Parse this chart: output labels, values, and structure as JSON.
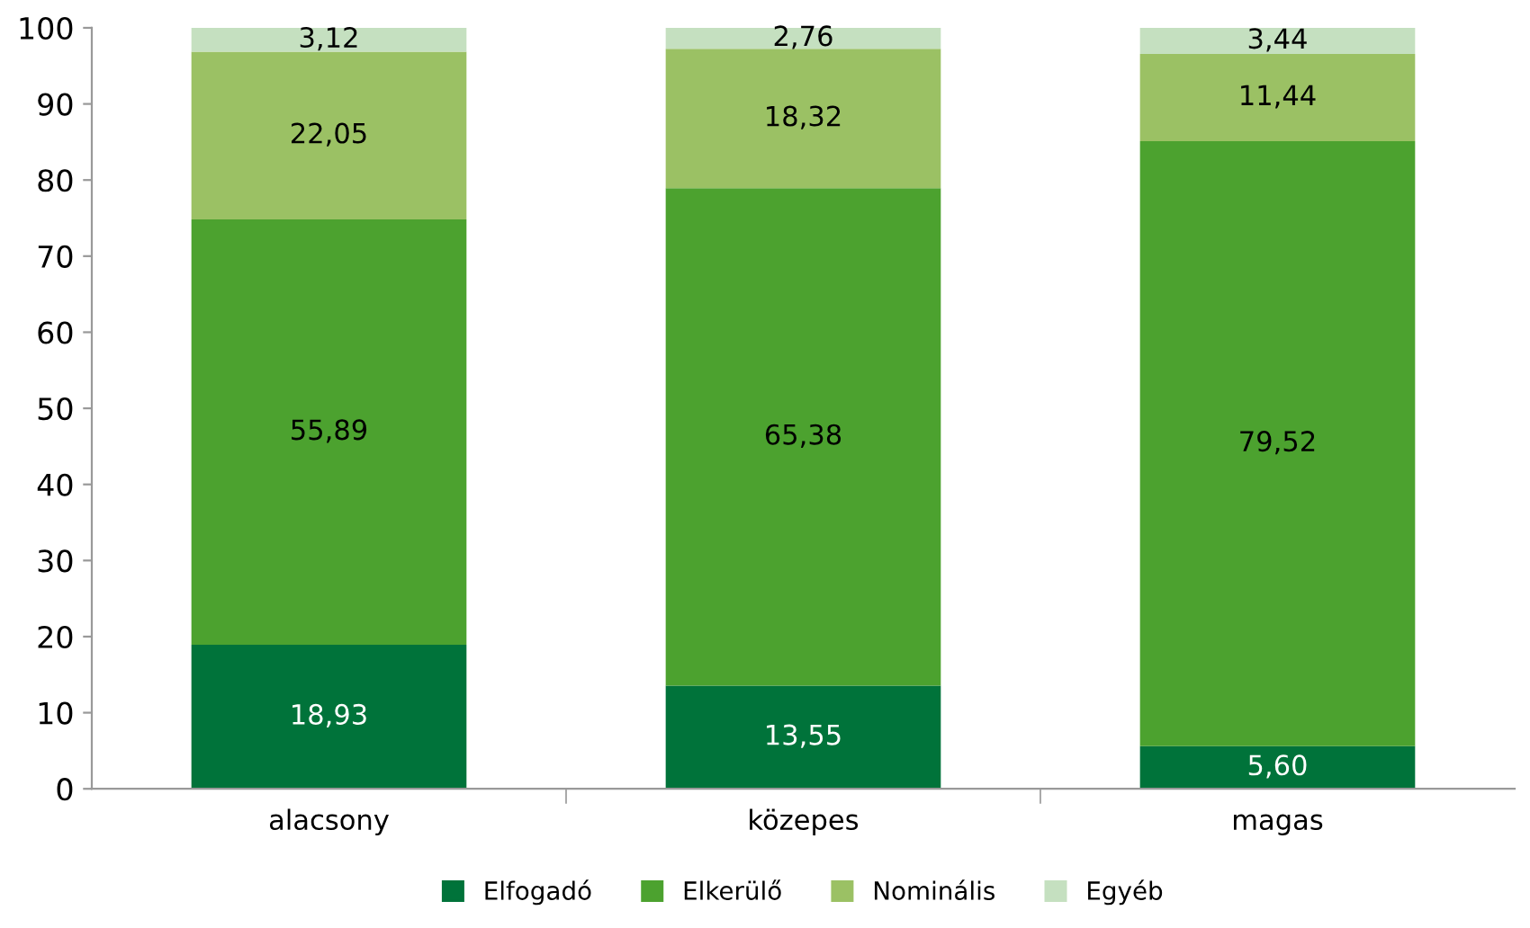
{
  "chart_data": {
    "type": "bar",
    "stacked": true,
    "categories": [
      "alacsony",
      "közepes",
      "magas"
    ],
    "series": [
      {
        "name": "Elfogadó",
        "color": "#00733a",
        "values": [
          18.93,
          13.55,
          5.6
        ],
        "value_labels": [
          "18,93",
          "13,55",
          "5,60"
        ]
      },
      {
        "name": "Elkerülő",
        "color": "#4ca22f",
        "values": [
          55.89,
          65.38,
          79.52
        ],
        "value_labels": [
          "55,89",
          "65,38",
          "79,52"
        ]
      },
      {
        "name": "Nominális",
        "color": "#9bc164",
        "values": [
          22.05,
          18.32,
          11.44
        ],
        "value_labels": [
          "22,05",
          "18,32",
          "11,44"
        ]
      },
      {
        "name": "Egyéb",
        "color": "#c5e0c0",
        "values": [
          3.12,
          2.76,
          3.44
        ],
        "value_labels": [
          "3,12",
          "2,76",
          "3,44"
        ]
      }
    ],
    "ylim": [
      0,
      100
    ],
    "yticks": [
      0,
      10,
      20,
      30,
      40,
      50,
      60,
      70,
      80,
      90,
      100
    ],
    "grid": false,
    "legend": "bottom"
  }
}
